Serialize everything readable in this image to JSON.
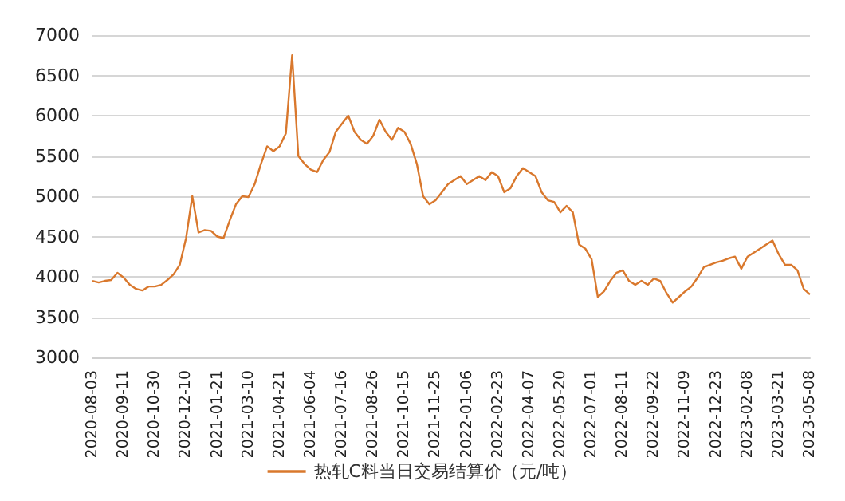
{
  "chart_data": {
    "type": "line",
    "categories": [
      "2020-08-03",
      null,
      null,
      null,
      null,
      "2020-09-11",
      null,
      null,
      null,
      null,
      "2020-10-30",
      null,
      null,
      null,
      null,
      "2020-12-10",
      null,
      null,
      null,
      null,
      "2021-01-21",
      null,
      null,
      null,
      null,
      "2021-03-10",
      null,
      null,
      null,
      null,
      "2021-04-21",
      null,
      null,
      null,
      null,
      "2021-06-04",
      null,
      null,
      null,
      null,
      "2021-07-16",
      null,
      null,
      null,
      null,
      "2021-08-26",
      null,
      null,
      null,
      null,
      "2021-10-15",
      null,
      null,
      null,
      null,
      "2021-11-25",
      null,
      null,
      null,
      null,
      "2022-01-06",
      null,
      null,
      null,
      null,
      "2022-02-23",
      null,
      null,
      null,
      null,
      "2022-04-07",
      null,
      null,
      null,
      null,
      "2022-05-20",
      null,
      null,
      null,
      null,
      "2022-07-01",
      null,
      null,
      null,
      null,
      "2022-08-11",
      null,
      null,
      null,
      null,
      "2022-09-22",
      null,
      null,
      null,
      null,
      "2022-11-09",
      null,
      null,
      null,
      null,
      "2022-12-23",
      null,
      null,
      null,
      null,
      "2023-02-08",
      null,
      null,
      null,
      null,
      "2023-03-21",
      null,
      null,
      null,
      null,
      "2023-05-08"
    ],
    "series": [
      {
        "name": "热轧C料当日交易结算价（元/吨）",
        "color": "#d9782d",
        "values": [
          3950,
          3930,
          3950,
          3960,
          4050,
          3990,
          3900,
          3850,
          3830,
          3880,
          3880,
          3900,
          3960,
          4030,
          4150,
          4480,
          5000,
          4550,
          4580,
          4570,
          4500,
          4480,
          4700,
          4900,
          5000,
          4990,
          5150,
          5400,
          5620,
          5560,
          5620,
          5780,
          6750,
          5500,
          5400,
          5330,
          5300,
          5450,
          5550,
          5800,
          5900,
          6000,
          5800,
          5700,
          5650,
          5750,
          5950,
          5800,
          5700,
          5850,
          5800,
          5650,
          5400,
          5000,
          4900,
          4950,
          5050,
          5150,
          5200,
          5250,
          5150,
          5200,
          5250,
          5200,
          5300,
          5250,
          5050,
          5100,
          5250,
          5350,
          5300,
          5250,
          5050,
          4950,
          4930,
          4800,
          4880,
          4800,
          4400,
          4350,
          4220,
          3750,
          3820,
          3950,
          4050,
          4080,
          3950,
          3900,
          3950,
          3900,
          3980,
          3950,
          3800,
          3680,
          3750,
          3820,
          3880,
          3990,
          4120,
          4150,
          4180,
          4200,
          4230,
          4250,
          4100,
          4250,
          4300,
          4350,
          4400,
          4450,
          4280,
          4150,
          4150,
          4080,
          3850,
          3780
        ]
      }
    ],
    "ylim": [
      3000,
      7000
    ],
    "yticks": [
      3000,
      3500,
      4000,
      4500,
      5000,
      5500,
      6000,
      6500,
      7000
    ],
    "grid": "y",
    "legend": "bottom",
    "marker": "none",
    "line_style": "solid"
  }
}
